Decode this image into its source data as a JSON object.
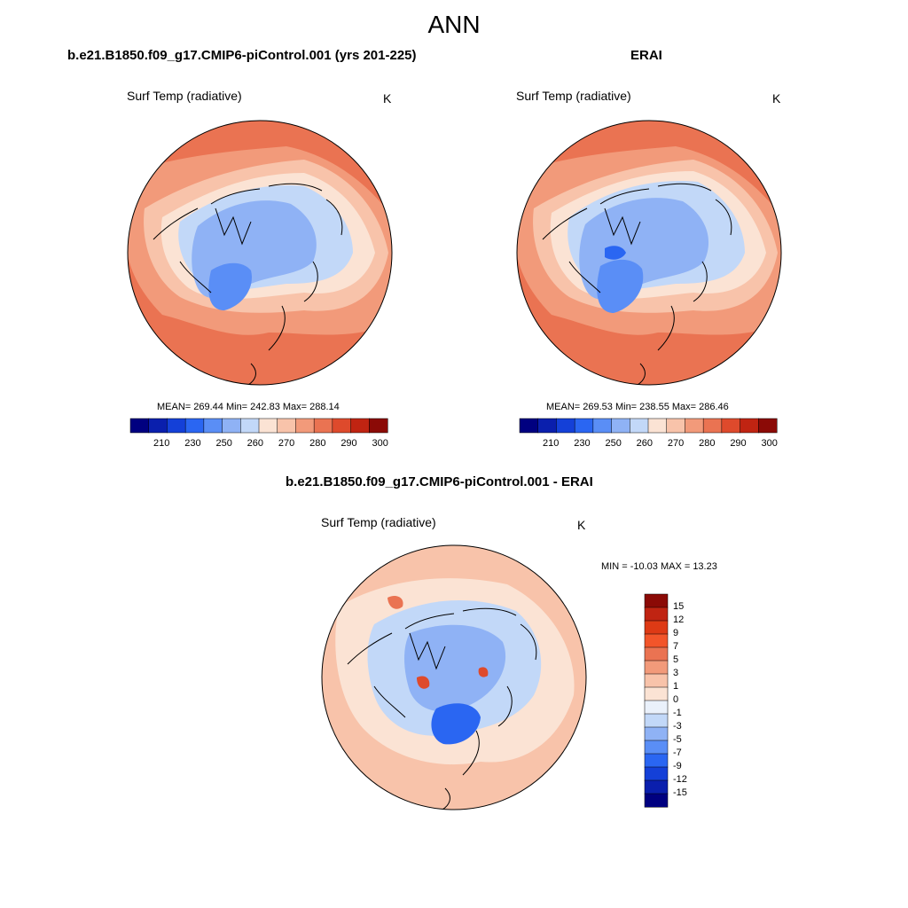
{
  "figure_title": "ANN",
  "panels": [
    {
      "title": "b.e21.B1850.f09_g17.CMIP6-piControl.001 (yrs 201-225)",
      "variable": "Surf Temp (radiative)",
      "units": "K",
      "stats": "MEAN= 269.44  Min= 242.83  Max= 288.14"
    },
    {
      "title": "ERAI",
      "variable": "Surf Temp (radiative)",
      "units": "K",
      "stats": "MEAN= 269.53  Min= 238.55  Max= 286.46"
    },
    {
      "title": "b.e21.B1850.f09_g17.CMIP6-piControl.001 - ERAI",
      "variable": "Surf Temp (radiative)",
      "units": "K",
      "stats": "MIN = -10.03 MAX =  13.23"
    }
  ],
  "colorbar_abs": {
    "colors": [
      "#000080",
      "#0a1fad",
      "#1440d8",
      "#2a66f2",
      "#5a8ef6",
      "#8fb2f5",
      "#c2d8f8",
      "#fbe3d4",
      "#f8c3aa",
      "#f29a7a",
      "#ea7352",
      "#de4a2c",
      "#c02412",
      "#8b0a06"
    ],
    "ticks": [
      "210",
      "230",
      "250",
      "260",
      "270",
      "280",
      "290",
      "300"
    ]
  },
  "colorbar_diff": {
    "colors": [
      "#000080",
      "#0a1fad",
      "#1440d8",
      "#2a66f2",
      "#5a8ef6",
      "#8fb2f5",
      "#c2d8f8",
      "#eaf1fb",
      "#fbe3d4",
      "#f8c3aa",
      "#f29a7a",
      "#ea7352",
      "#f2552a",
      "#de3a15",
      "#c02412",
      "#8b0a06"
    ],
    "ticks": [
      "15",
      "12",
      "9",
      "7",
      "5",
      "3",
      "1",
      "0",
      "-1",
      "-3",
      "-5",
      "-7",
      "-9",
      "-12",
      "-15"
    ]
  },
  "map_colors": {
    "warm_strong": "#ea7352",
    "warm_mid": "#f29a7a",
    "warm_light": "#f8c3aa",
    "cream": "#fbe3d4",
    "cold_light": "#c2d8f8",
    "cold_mid": "#8fb2f5",
    "cold_strong": "#5a8ef6",
    "cold_deep": "#2a66f2",
    "diff_neutral": "#eaf1fb"
  }
}
